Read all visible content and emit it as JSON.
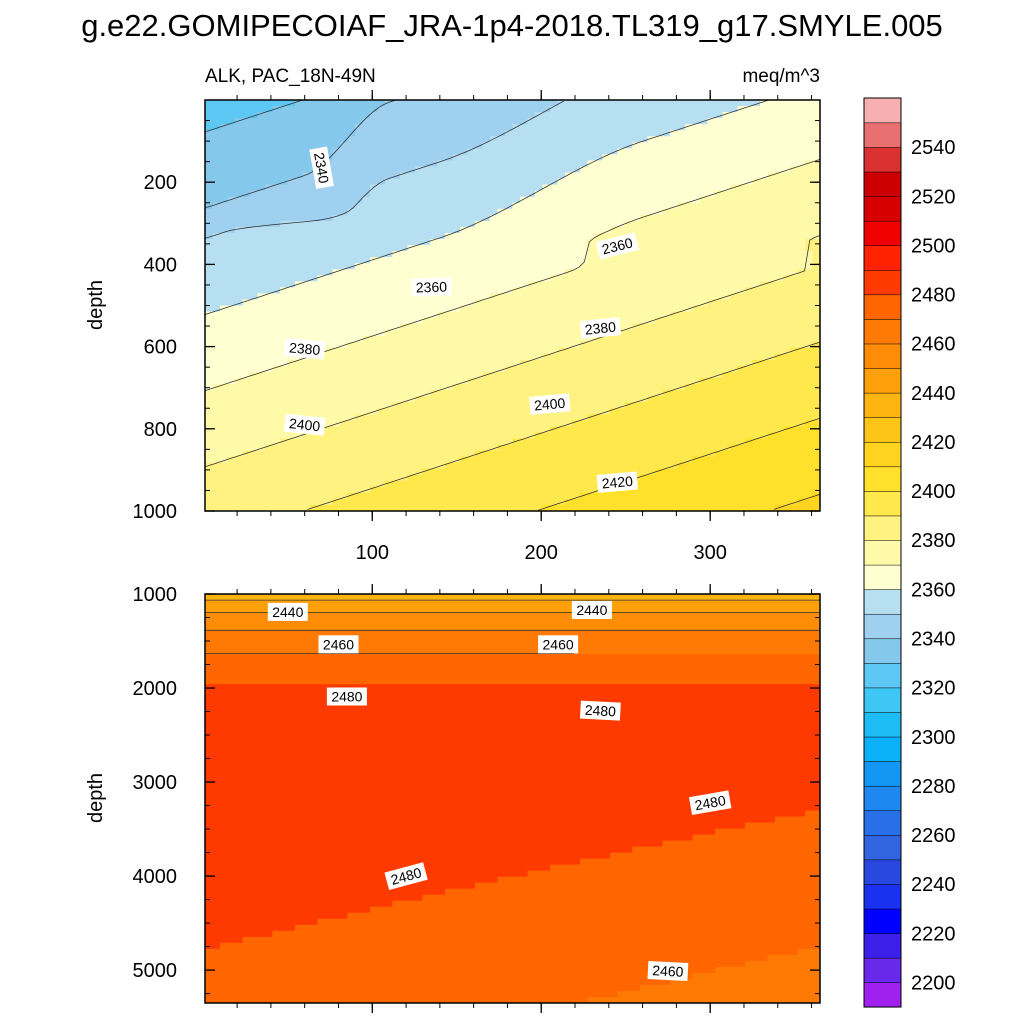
{
  "chart_data": {
    "title": "g.e22.GOMIPECOIAF_JRA-1p4-2018.TL319_g17.SMYLE.005",
    "left_string": "ALK, PAC_18N-49N",
    "right_string": "meq/m^3",
    "type": "heatmap",
    "x_tick_labels": [
      "100",
      "200",
      "300"
    ],
    "x_ticks": [
      100,
      200,
      300
    ],
    "xlim": [
      1,
      365
    ],
    "colors": {
      "contour_line": "#333333",
      "label_box": "#ffffff",
      "axis": "#000000"
    },
    "panels": [
      {
        "name": "upper",
        "ylabel": "depth",
        "ylim": [
          0,
          1000
        ],
        "y_ticks": [
          200,
          400,
          600,
          800,
          1000
        ],
        "y_tick_labels": [
          "200",
          "400",
          "600",
          "800",
          "1000"
        ],
        "contour_labels": [
          {
            "x": 70,
            "depth": 165,
            "text": "2340",
            "angle": 80
          },
          {
            "x": 135,
            "depth": 455,
            "text": "2360",
            "angle": -2
          },
          {
            "x": 245,
            "depth": 355,
            "text": "2360",
            "angle": -14
          },
          {
            "x": 60,
            "depth": 605,
            "text": "2380",
            "angle": 5
          },
          {
            "x": 235,
            "depth": 555,
            "text": "2380",
            "angle": -6
          },
          {
            "x": 60,
            "depth": 790,
            "text": "2400",
            "angle": 6
          },
          {
            "x": 205,
            "depth": 740,
            "text": "2400",
            "angle": -5
          },
          {
            "x": 245,
            "depth": 930,
            "text": "2420",
            "angle": -5
          }
        ]
      },
      {
        "name": "lower",
        "ylabel": "depth",
        "ylim": [
          1000,
          5350
        ],
        "y_ticks": [
          1000,
          2000,
          3000,
          4000,
          5000
        ],
        "y_tick_labels": [
          "1000",
          "2000",
          "3000",
          "4000",
          "5000"
        ],
        "contour_labels": [
          {
            "x": 50,
            "depth": 1190,
            "text": "2440",
            "angle": 0
          },
          {
            "x": 230,
            "depth": 1170,
            "text": "2440",
            "angle": 0
          },
          {
            "x": 80,
            "depth": 1535,
            "text": "2460",
            "angle": 0
          },
          {
            "x": 210,
            "depth": 1535,
            "text": "2460",
            "angle": 0
          },
          {
            "x": 85,
            "depth": 2090,
            "text": "2480",
            "angle": 0
          },
          {
            "x": 235,
            "depth": 2240,
            "text": "2480",
            "angle": 3
          },
          {
            "x": 300,
            "depth": 3220,
            "text": "2480",
            "angle": -10
          },
          {
            "x": 120,
            "depth": 4000,
            "text": "2480",
            "angle": -15
          },
          {
            "x": 275,
            "depth": 5010,
            "text": "2460",
            "angle": 3
          }
        ]
      }
    ],
    "colorbar": {
      "levels": [
        2200,
        2210,
        2220,
        2230,
        2240,
        2250,
        2260,
        2270,
        2280,
        2290,
        2300,
        2310,
        2320,
        2330,
        2340,
        2350,
        2360,
        2370,
        2380,
        2390,
        2400,
        2410,
        2420,
        2430,
        2440,
        2450,
        2460,
        2470,
        2480,
        2490,
        2500,
        2510,
        2520,
        2530,
        2540,
        2550
      ],
      "labels": [
        "2200",
        "2220",
        "2240",
        "2260",
        "2280",
        "2300",
        "2320",
        "2340",
        "2360",
        "2380",
        "2400",
        "2420",
        "2440",
        "2460",
        "2480",
        "2500",
        "2520",
        "2540"
      ],
      "colors": [
        "#a020f0",
        "#6a28ea",
        "#3c1fe8",
        "#0000ff",
        "#1a32f0",
        "#2848e0",
        "#3264e0",
        "#2870e8",
        "#1e88f0",
        "#1496f5",
        "#0ab0f8",
        "#1ebcf5",
        "#3ec6f5",
        "#5ec8f4",
        "#84c8ec",
        "#9fd0ef",
        "#b7dff2",
        "#ffffd2",
        "#fffaa8",
        "#fff280",
        "#ffe84c",
        "#ffe02a",
        "#ffd320",
        "#ffc418",
        "#ffb410",
        "#ff9f0a",
        "#ff8c06",
        "#ff7a04",
        "#ff6600",
        "#ff3a00",
        "#ff2200",
        "#f00000",
        "#d60000",
        "#cc0000",
        "#d93030",
        "#e87070",
        "#f7b0b0"
      ]
    }
  }
}
